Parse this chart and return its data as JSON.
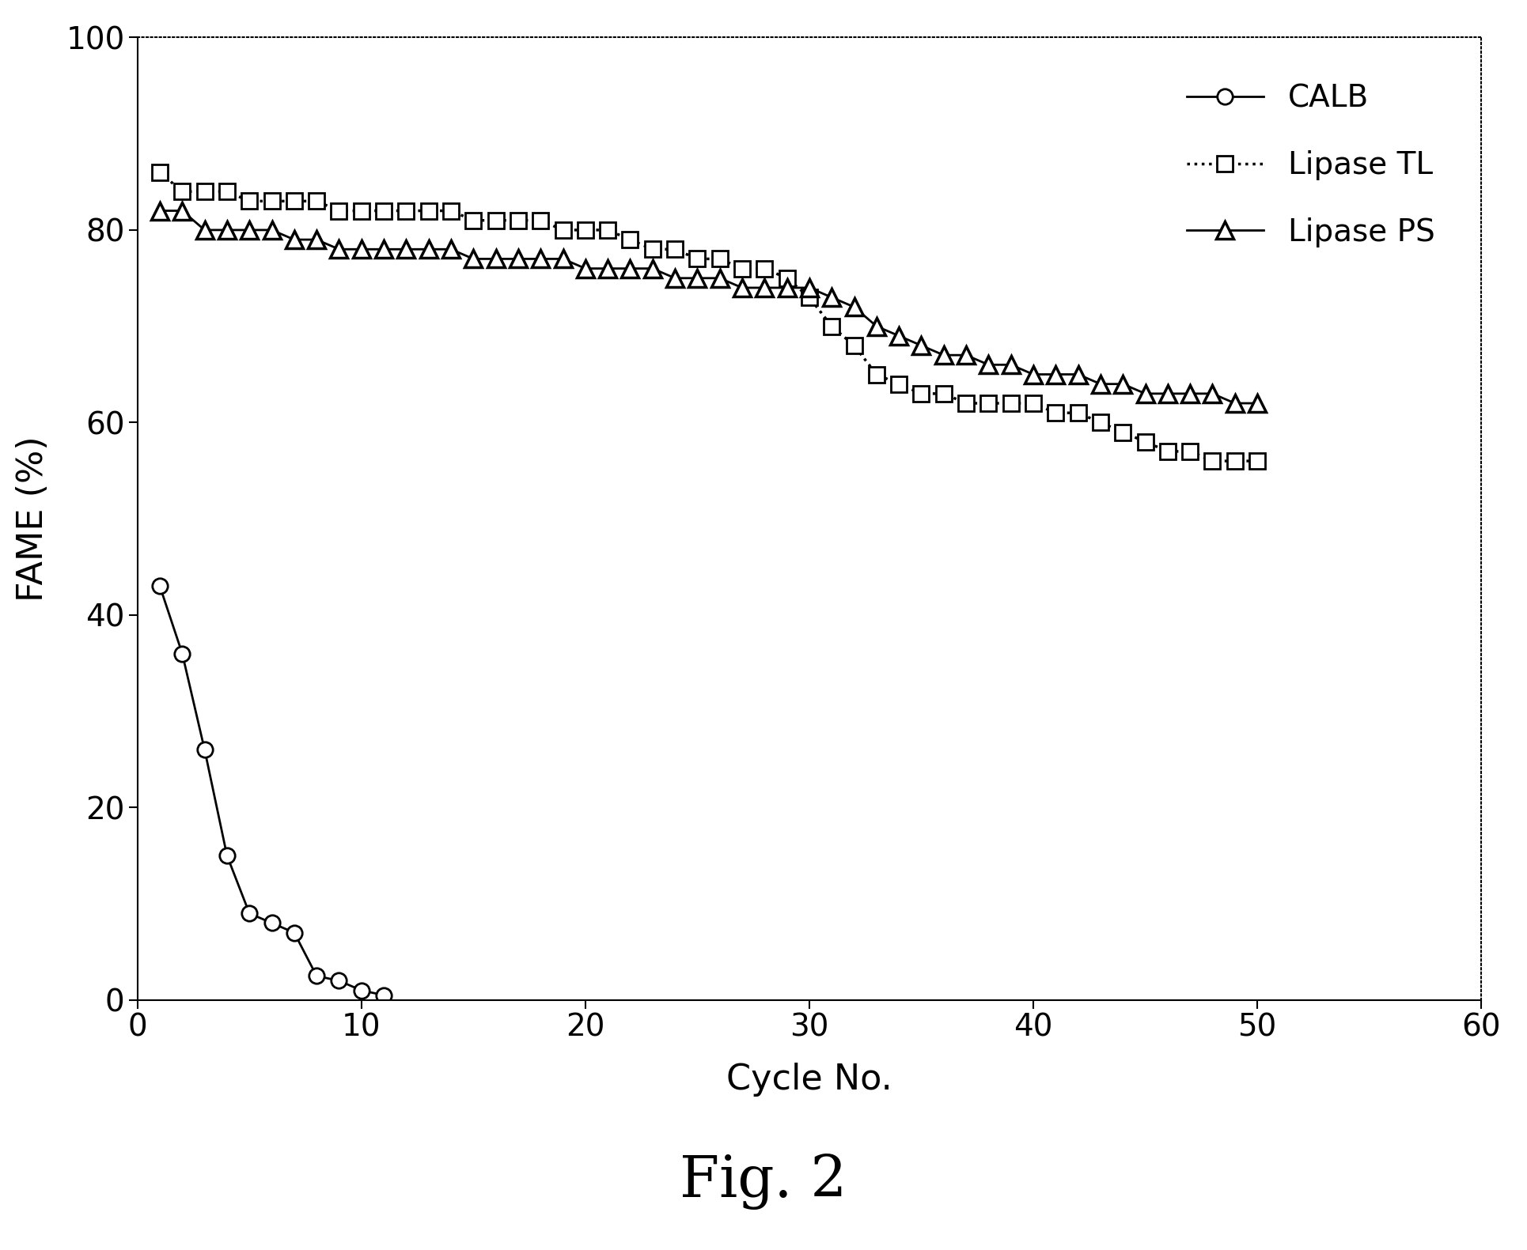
{
  "title": "Fig. 2",
  "xlabel": "Cycle No.",
  "ylabel": "FAME (%)",
  "xlim": [
    0,
    60
  ],
  "ylim": [
    0,
    100
  ],
  "xticks": [
    0,
    10,
    20,
    30,
    40,
    50,
    60
  ],
  "yticks": [
    0,
    20,
    40,
    60,
    80,
    100
  ],
  "calb_x": [
    1,
    2,
    3,
    4,
    5,
    6,
    7,
    8,
    9,
    10,
    11
  ],
  "calb_y": [
    43,
    36,
    26,
    15,
    9,
    8,
    7,
    2.5,
    2,
    1,
    0.5
  ],
  "lipase_tl_x": [
    1,
    2,
    3,
    4,
    5,
    6,
    7,
    8,
    9,
    10,
    11,
    12,
    13,
    14,
    15,
    16,
    17,
    18,
    19,
    20,
    21,
    22,
    23,
    24,
    25,
    26,
    27,
    28,
    29,
    30,
    31,
    32,
    33,
    34,
    35,
    36,
    37,
    38,
    39,
    40,
    41,
    42,
    43,
    44,
    45,
    46,
    47,
    48,
    49,
    50
  ],
  "lipase_tl_y": [
    86,
    84,
    84,
    84,
    83,
    83,
    83,
    83,
    82,
    82,
    82,
    82,
    82,
    82,
    81,
    81,
    81,
    81,
    80,
    80,
    80,
    79,
    78,
    78,
    77,
    77,
    76,
    76,
    75,
    73,
    70,
    68,
    65,
    64,
    63,
    63,
    62,
    62,
    62,
    62,
    61,
    61,
    60,
    59,
    58,
    57,
    57,
    56,
    56,
    56
  ],
  "lipase_ps_x": [
    1,
    2,
    3,
    4,
    5,
    6,
    7,
    8,
    9,
    10,
    11,
    12,
    13,
    14,
    15,
    16,
    17,
    18,
    19,
    20,
    21,
    22,
    23,
    24,
    25,
    26,
    27,
    28,
    29,
    30,
    31,
    32,
    33,
    34,
    35,
    36,
    37,
    38,
    39,
    40,
    41,
    42,
    43,
    44,
    45,
    46,
    47,
    48,
    49,
    50
  ],
  "lipase_ps_y": [
    82,
    82,
    80,
    80,
    80,
    80,
    79,
    79,
    78,
    78,
    78,
    78,
    78,
    78,
    77,
    77,
    77,
    77,
    77,
    76,
    76,
    76,
    76,
    75,
    75,
    75,
    74,
    74,
    74,
    74,
    73,
    72,
    70,
    69,
    68,
    67,
    67,
    66,
    66,
    65,
    65,
    65,
    64,
    64,
    63,
    63,
    63,
    63,
    62,
    62
  ],
  "legend_labels": [
    "CALB",
    "Lipase TL",
    "Lipase PS"
  ],
  "background_color": "#ffffff",
  "line_color": "#000000",
  "fig_width": 19.3,
  "fig_height": 15.81
}
